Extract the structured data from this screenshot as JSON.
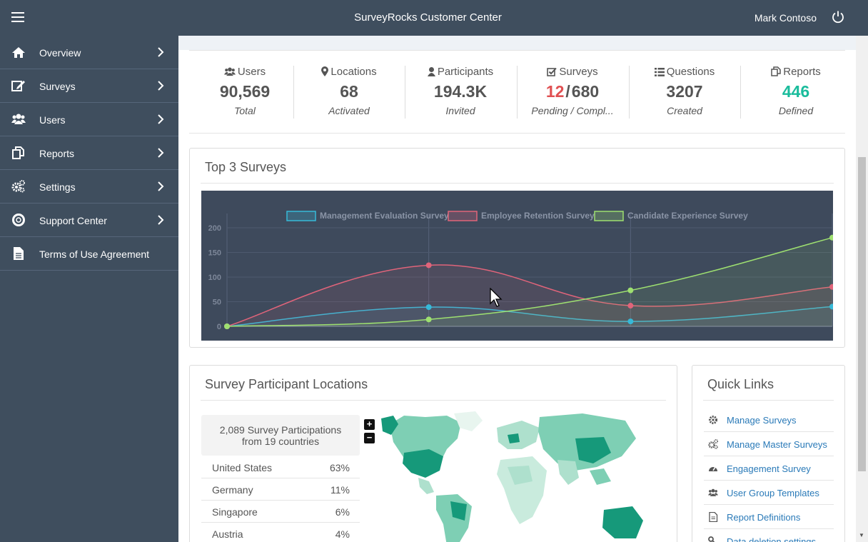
{
  "app": {
    "title": "SurveyRocks Customer Center",
    "user": "Mark Contoso"
  },
  "sidebar": {
    "items": [
      {
        "label": "Overview",
        "icon": "home-icon"
      },
      {
        "label": "Surveys",
        "icon": "edit-icon"
      },
      {
        "label": "Users",
        "icon": "users-icon"
      },
      {
        "label": "Reports",
        "icon": "copy-icon"
      },
      {
        "label": "Settings",
        "icon": "gears-icon"
      },
      {
        "label": "Support Center",
        "icon": "lifebuoy-icon"
      },
      {
        "label": "Terms of Use Agreement",
        "icon": "document-icon"
      }
    ]
  },
  "stats": [
    {
      "label": "Users",
      "value": "90,569",
      "sub": "Total",
      "icon": "users-icon"
    },
    {
      "label": "Locations",
      "value": "68",
      "sub": "Activated",
      "icon": "map-marker-icon"
    },
    {
      "label": "Participants",
      "value": "194.3K",
      "sub": "Invited",
      "icon": "user-icon"
    },
    {
      "label": "Surveys",
      "value_pending": "12",
      "value_sep": "/",
      "value_completed": "680",
      "sub": "Pending / Compl...",
      "icon": "check-square-icon"
    },
    {
      "label": "Questions",
      "value": "3207",
      "sub": "Created",
      "icon": "list-icon"
    },
    {
      "label": "Reports",
      "value": "446",
      "sub": "Defined",
      "icon": "copy-icon"
    }
  ],
  "top_surveys": {
    "title": "Top 3 Surveys"
  },
  "chart_data": {
    "type": "line",
    "title": "",
    "xlabel": "",
    "ylabel": "",
    "ylim": [
      0,
      200
    ],
    "yticks": [
      0,
      50,
      100,
      150,
      200
    ],
    "x": [
      0,
      1,
      2,
      3
    ],
    "legend_position": "top",
    "grid": true,
    "series": [
      {
        "name": "Management Evaluation Survey",
        "color": "#36b9d8",
        "values": [
          0,
          39,
          10,
          40
        ]
      },
      {
        "name": "Employee Retention Survey",
        "color": "#e0647a",
        "values": [
          0,
          124,
          42,
          80
        ]
      },
      {
        "name": "Candidate Experience Survey",
        "color": "#9ee070",
        "values": [
          0,
          14,
          73,
          180
        ]
      }
    ]
  },
  "locations": {
    "title": "Survey Participant Locations",
    "summary_line1": "2,089 Survey Participations",
    "summary_line2": "from 19 countries",
    "rows": [
      {
        "country": "United States",
        "pct": "63%"
      },
      {
        "country": "Germany",
        "pct": "11%"
      },
      {
        "country": "Singapore",
        "pct": "6%"
      },
      {
        "country": "Austria",
        "pct": "4%"
      }
    ],
    "zoom_in": "+",
    "zoom_out": "−"
  },
  "quick_links": {
    "title": "Quick Links",
    "items": [
      {
        "label": "Manage Surveys",
        "icon": "gear-icon"
      },
      {
        "label": "Manage Master Surveys",
        "icon": "gears-icon"
      },
      {
        "label": "Engagement Survey",
        "icon": "dashboard-icon"
      },
      {
        "label": "User Group Templates",
        "icon": "users-icon"
      },
      {
        "label": "Report Definitions",
        "icon": "document-icon"
      },
      {
        "label": "Data deletion settings",
        "icon": "key-icon"
      }
    ]
  }
}
